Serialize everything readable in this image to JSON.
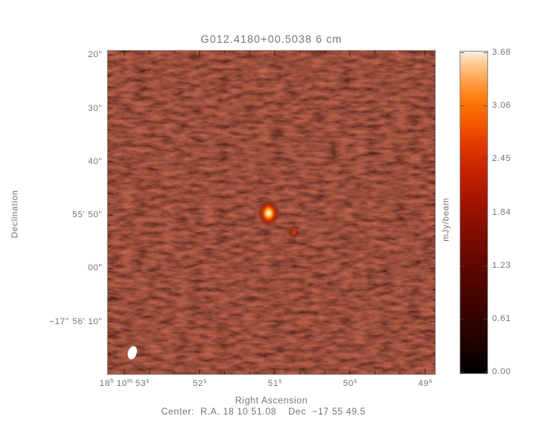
{
  "title": "G012.4180+00.5038 6 cm",
  "plot": {
    "x_axis": {
      "label": "Right Ascension",
      "ticks": [
        {
          "parts": [
            {
              "t": "18",
              "s": "h"
            },
            {
              "t": "10",
              "s": "m"
            },
            {
              "t": "53",
              "s": "s"
            }
          ]
        },
        {
          "parts": [
            {
              "t": "52",
              "s": "s"
            }
          ]
        },
        {
          "parts": [
            {
              "t": "51",
              "s": "s"
            }
          ]
        },
        {
          "parts": [
            {
              "t": "50",
              "s": "s"
            }
          ]
        },
        {
          "parts": [
            {
              "t": "49",
              "s": "s"
            }
          ]
        }
      ]
    },
    "y_axis": {
      "label": "Declination",
      "ticks": [
        "20\"",
        "30\"",
        "40\"",
        "55' 50\"",
        "00\"",
        "−17° 56' 10\""
      ]
    }
  },
  "colorbar": {
    "label": "mJy/beam",
    "ticks": [
      "3.68",
      "3.06",
      "2.45",
      "1.84",
      "1.23",
      "0.61",
      "0.00"
    ]
  },
  "footer": {
    "center_line": "Center:  R.A. 18 10 51.08    Dec  −17 55 49.5"
  },
  "chart_data": {
    "type": "heatmap",
    "title": "G012.4180+00.5038 6 cm",
    "xlabel": "Right Ascension",
    "ylabel": "Declination",
    "x_tick_labels": [
      "18h 10m 53s",
      "52s",
      "51s",
      "50s",
      "49s"
    ],
    "y_tick_labels": [
      "20\"",
      "30\"",
      "40\"",
      "55' 50\"",
      "00\"",
      "-17° 56' 10\""
    ],
    "x_range": {
      "left": "RA 18h 10m 53.2s",
      "right": "RA 18h 10m 48.9s"
    },
    "y_range": {
      "top": "Dec -17° 55' 19\"",
      "bottom": "Dec -17° 56' 20\""
    },
    "field_center": {
      "ra": "18 10 51.08",
      "dec": "-17 55 49.5"
    },
    "colorbar": {
      "label": "mJy/beam",
      "tick_values": [
        3.68,
        3.06,
        2.45,
        1.84,
        1.23,
        0.61,
        0.0
      ],
      "min": 0.0,
      "max": 3.68,
      "colormap": "heat (black - dark red - red - orange - white)"
    },
    "sources": [
      {
        "id": "primary",
        "ra_approx": "18 10 51.1",
        "dec_approx": "-17 55 50",
        "peak_mjy_per_beam_approx": 3.7,
        "note": "bright compact source near field center"
      },
      {
        "id": "secondary",
        "ra_approx": "18 10 50.8",
        "dec_approx": "-17 55 53",
        "peak_mjy_per_beam_approx": 1.5,
        "note": "fainter compact source SE of primary"
      }
    ],
    "background_noise_mjy_per_beam_approx": [
      0.0,
      0.7
    ],
    "beam": {
      "shown": true,
      "location": "bottom-left corner",
      "shape": "filled white ellipse"
    }
  }
}
